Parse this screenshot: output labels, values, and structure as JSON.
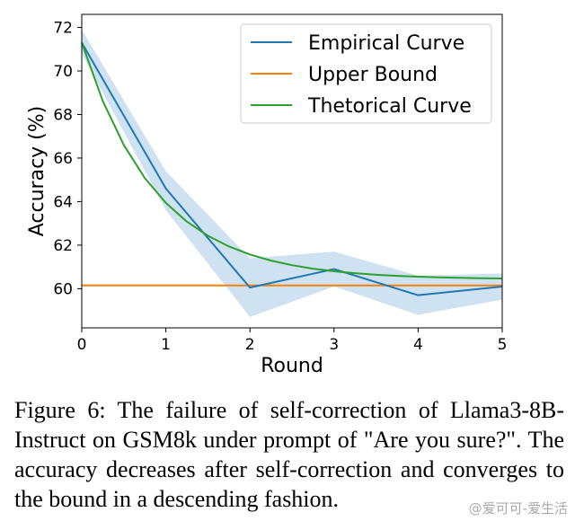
{
  "chart_data": {
    "type": "line",
    "xlabel": "Round",
    "ylabel": "Accuracy (%)",
    "xlim": [
      0,
      5
    ],
    "ylim": [
      58.2,
      72.6
    ],
    "x_ticks": [
      "0",
      "1",
      "2",
      "3",
      "4",
      "5"
    ],
    "y_ticks": [
      "60",
      "62",
      "64",
      "66",
      "68",
      "70",
      "72"
    ],
    "legend_position": "top-right",
    "grid": false,
    "series": [
      {
        "name": "Empirical Curve",
        "color": "#1f77b4",
        "x": [
          0,
          1,
          2,
          3,
          4,
          5
        ],
        "y": [
          71.3,
          64.6,
          60.05,
          60.9,
          59.7,
          60.1
        ],
        "band_upper": [
          71.9,
          65.4,
          61.4,
          61.7,
          60.6,
          60.7
        ],
        "band_lower": [
          70.8,
          63.6,
          58.7,
          60.1,
          58.8,
          59.5
        ],
        "band_color": "#a8cbe6"
      },
      {
        "name": "Upper Bound",
        "color": "#ff7f0e",
        "x": [
          0,
          5
        ],
        "y": [
          60.15,
          60.15
        ]
      },
      {
        "name": "Thetorical Curve",
        "color": "#2ca02c",
        "x": [
          0,
          0.25,
          0.5,
          0.75,
          1,
          1.25,
          1.5,
          1.75,
          2,
          2.25,
          2.5,
          2.75,
          3,
          3.25,
          3.5,
          3.75,
          4,
          4.25,
          4.5,
          4.75,
          5
        ],
        "y": [
          71.3,
          68.62,
          66.6,
          65.08,
          63.94,
          63.08,
          62.43,
          61.94,
          61.57,
          61.29,
          61.08,
          60.92,
          60.8,
          60.71,
          60.64,
          60.59,
          60.55,
          60.52,
          60.5,
          60.48,
          60.47
        ]
      }
    ]
  },
  "caption": "Figure 6: The failure of self-correction of Llama3-8B-Instruct on GSM8k under prompt of \"Are you sure?\". The accuracy decreases after self-correction and converges to the bound in a descending fashion.",
  "watermark": "@爱可可-爱生活"
}
